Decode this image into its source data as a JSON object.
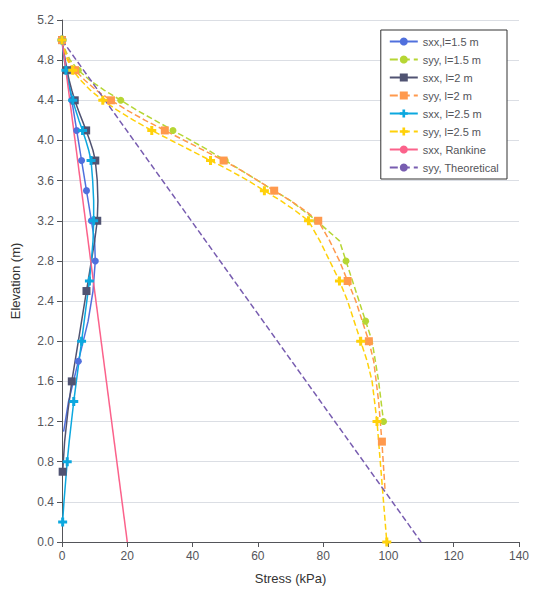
{
  "chart_data": {
    "type": "line",
    "xlabel": "Stress (kPa)",
    "ylabel": "Elevation (m)",
    "xlim": [
      0,
      140
    ],
    "ylim": [
      0,
      5.2
    ],
    "xticks": [
      0,
      20,
      40,
      60,
      80,
      100,
      120,
      140
    ],
    "yticks": [
      {
        "value": 0,
        "label": "0.0"
      },
      0.4,
      0.8,
      1.2,
      1.6,
      {
        "value": 2.0,
        "label": "2.0"
      },
      2.4,
      2.8,
      3.2,
      3.6,
      {
        "value": 4.0,
        "label": "4.0"
      },
      4.4,
      4.8,
      5.2
    ],
    "grid": "y",
    "legend": "upper right",
    "series": [
      {
        "name": "sxx,l=1.5 m",
        "line_style": "solid",
        "marker": "circle",
        "x": [
          0.0,
          0.5,
          1.0,
          1.5,
          2.0,
          2.5,
          3.0,
          3.5,
          4.0,
          4.5,
          5.0,
          5.5,
          6.0,
          6.5,
          7.0,
          7.5,
          8.0,
          8.5,
          9.0,
          9.5,
          10.0,
          10.2,
          9.5,
          8.0,
          5.0,
          2.0,
          0.5
        ],
        "values": [
          5.0,
          4.9,
          4.8,
          4.7,
          4.6,
          4.5,
          4.4,
          4.3,
          4.2,
          4.1,
          4.0,
          3.9,
          3.8,
          3.7,
          3.6,
          3.5,
          3.4,
          3.3,
          3.2,
          3.1,
          3.0,
          2.8,
          2.5,
          2.2,
          1.8,
          1.4,
          1.1
        ]
      },
      {
        "name": "syy, l=1.5 m",
        "line_style": "dashed",
        "marker": "circle",
        "x": [
          0.0,
          1.0,
          2.5,
          5.0,
          8.5,
          13.0,
          18.0,
          23.0,
          28.5,
          34.0,
          39.5,
          45.0,
          50.0,
          55.0,
          60.0,
          65.0,
          70.0,
          74.0,
          78.0,
          81.5,
          85.0,
          87.0,
          89.0,
          91.0,
          93.0,
          95.0,
          97.0,
          98.5
        ],
        "values": [
          5.0,
          4.9,
          4.8,
          4.7,
          4.6,
          4.5,
          4.4,
          4.3,
          4.2,
          4.1,
          4.0,
          3.9,
          3.8,
          3.7,
          3.6,
          3.5,
          3.4,
          3.3,
          3.2,
          3.1,
          3.0,
          2.8,
          2.6,
          2.4,
          2.2,
          2.0,
          1.6,
          1.2
        ]
      },
      {
        "name": "sxx, l=2 m",
        "line_style": "solid",
        "marker": "square",
        "x": [
          0.0,
          0.4,
          0.9,
          1.5,
          2.2,
          3.0,
          3.9,
          5.0,
          6.2,
          7.4,
          8.5,
          9.5,
          10.2,
          10.8,
          11.0,
          10.8,
          10.0,
          9.0,
          7.5,
          6.0,
          4.5,
          3.0,
          1.8,
          0.8,
          0.2
        ],
        "values": [
          5.0,
          4.9,
          4.8,
          4.7,
          4.6,
          4.5,
          4.4,
          4.3,
          4.2,
          4.1,
          4.0,
          3.9,
          3.8,
          3.6,
          3.4,
          3.2,
          3.0,
          2.8,
          2.5,
          2.2,
          1.9,
          1.6,
          1.3,
          1.0,
          0.7
        ]
      },
      {
        "name": "syy, l=2 m",
        "line_style": "dashed",
        "marker": "square",
        "x": [
          0.0,
          0.8,
          2.0,
          4.0,
          7.0,
          10.5,
          15.0,
          20.0,
          25.5,
          31.5,
          37.5,
          43.5,
          49.5,
          55.0,
          60.0,
          65.0,
          70.0,
          74.5,
          78.5,
          82.0,
          85.0,
          87.5,
          90.0,
          92.0,
          94.0,
          95.5,
          97.0,
          98.0,
          99.0
        ],
        "values": [
          5.0,
          4.9,
          4.8,
          4.7,
          4.6,
          4.5,
          4.4,
          4.3,
          4.2,
          4.1,
          4.0,
          3.9,
          3.8,
          3.7,
          3.6,
          3.5,
          3.4,
          3.3,
          3.2,
          3.0,
          2.8,
          2.6,
          2.4,
          2.2,
          2.0,
          1.8,
          1.4,
          1.0,
          0.5
        ]
      },
      {
        "name": "sxx, l=2.5 m",
        "line_style": "solid",
        "marker": "plus",
        "x": [
          0.0,
          0.3,
          0.7,
          1.2,
          1.8,
          2.5,
          3.3,
          4.2,
          5.2,
          6.3,
          7.3,
          8.2,
          8.9,
          9.4,
          9.7,
          9.7,
          9.5,
          9.0,
          8.4,
          7.6,
          6.8,
          6.0,
          5.2,
          4.4,
          3.6,
          2.9,
          2.2,
          1.6,
          1.1,
          0.6,
          0.2
        ],
        "values": [
          5.0,
          4.9,
          4.8,
          4.7,
          4.6,
          4.5,
          4.4,
          4.3,
          4.2,
          4.1,
          4.0,
          3.9,
          3.8,
          3.6,
          3.4,
          3.2,
          3.0,
          2.8,
          2.6,
          2.4,
          2.2,
          2.0,
          1.8,
          1.6,
          1.4,
          1.2,
          1.0,
          0.8,
          0.6,
          0.4,
          0.2
        ]
      },
      {
        "name": "syy, l=2.5 m",
        "line_style": "dashed",
        "marker": "plus",
        "x": [
          0.0,
          0.7,
          1.7,
          3.3,
          5.7,
          8.7,
          12.5,
          17.0,
          22.0,
          27.5,
          33.5,
          39.5,
          45.5,
          51.5,
          57.0,
          62.0,
          67.0,
          71.5,
          75.5,
          79.0,
          82.0,
          85.0,
          87.5,
          89.5,
          91.5,
          93.5,
          95.0,
          96.5,
          97.5,
          98.5,
          99.5
        ],
        "values": [
          5.0,
          4.9,
          4.8,
          4.7,
          4.6,
          4.5,
          4.4,
          4.3,
          4.2,
          4.1,
          4.0,
          3.9,
          3.8,
          3.7,
          3.6,
          3.5,
          3.4,
          3.3,
          3.2,
          3.0,
          2.8,
          2.6,
          2.4,
          2.2,
          2.0,
          1.8,
          1.6,
          1.2,
          0.8,
          0.4,
          0.0
        ]
      },
      {
        "name": "sxx, Rankine",
        "line_style": "solid",
        "marker": "none",
        "x": [
          0.0,
          20.0
        ],
        "values": [
          5.0,
          0.0
        ]
      },
      {
        "name": "syy, Theoretical",
        "line_style": "dashed",
        "marker": "none",
        "x": [
          0.0,
          110.0
        ],
        "values": [
          5.0,
          0.0
        ]
      }
    ]
  }
}
